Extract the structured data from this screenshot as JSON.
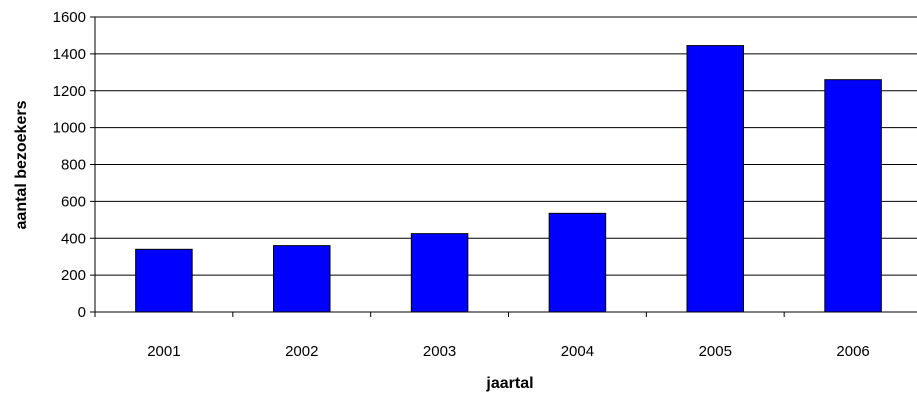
{
  "chart_data": {
    "type": "bar",
    "title": "",
    "xlabel": "jaartal",
    "ylabel": "aantal bezoekers",
    "categories": [
      "2001",
      "2002",
      "2003",
      "2004",
      "2005",
      "2006"
    ],
    "values": [
      340,
      360,
      425,
      535,
      1445,
      1260
    ],
    "ylim": [
      0,
      1600
    ],
    "yticks": [
      0,
      200,
      400,
      600,
      800,
      1000,
      1200,
      1400,
      1600
    ],
    "ytick_labels": [
      "0",
      "200",
      "400",
      "600",
      "800",
      "1000",
      "1200",
      "1400",
      "1600"
    ],
    "grid": true,
    "legend": "none",
    "bar_color": "#0000ff",
    "bar_border_color": "#000000",
    "grid_color": "#000000"
  }
}
